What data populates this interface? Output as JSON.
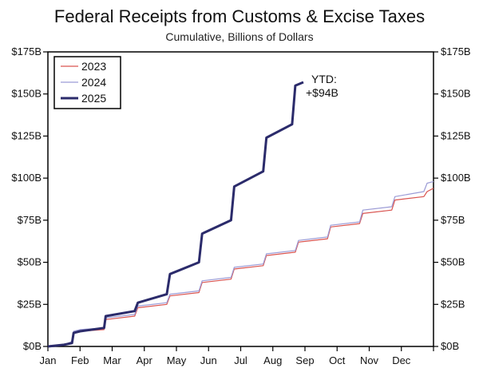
{
  "chart_data": {
    "type": "line",
    "title": "Federal Receipts from Customs & Excise Taxes",
    "subtitle": "Cumulative, Billions of Dollars",
    "xlabel": "",
    "ylabel": "",
    "x_tick_labels": [
      "Jan",
      "Feb",
      "Mar",
      "Apr",
      "May",
      "Jun",
      "Jul",
      "Aug",
      "Sep",
      "Oct",
      "Nov",
      "Dec"
    ],
    "x_range_months": [
      0,
      12
    ],
    "ylim": [
      0,
      175
    ],
    "y_ticks": [
      0,
      25,
      50,
      75,
      100,
      125,
      150,
      175
    ],
    "y_tick_labels": [
      "$0B",
      "$25B",
      "$50B",
      "$75B",
      "$100B",
      "$125B",
      "$150B",
      "$175B"
    ],
    "grid": false,
    "legend_position": "top-left",
    "annotation": {
      "line1": "YTD:",
      "line2": "+$94B",
      "month": 7.95,
      "value": 157
    },
    "series": [
      {
        "name": "2023",
        "color": "#d9534f",
        "points": [
          [
            0,
            0
          ],
          [
            0.5,
            1
          ],
          [
            0.75,
            2
          ],
          [
            0.8,
            8
          ],
          [
            1.0,
            9
          ],
          [
            1.75,
            10
          ],
          [
            1.8,
            16
          ],
          [
            2.7,
            18
          ],
          [
            2.8,
            23
          ],
          [
            3.7,
            25
          ],
          [
            3.8,
            30
          ],
          [
            4.7,
            32
          ],
          [
            4.8,
            38
          ],
          [
            5.7,
            40
          ],
          [
            5.8,
            46
          ],
          [
            6.7,
            48
          ],
          [
            6.8,
            54
          ],
          [
            7.7,
            56
          ],
          [
            7.8,
            62
          ],
          [
            8.7,
            64
          ],
          [
            8.8,
            71
          ],
          [
            9.7,
            73
          ],
          [
            9.8,
            79
          ],
          [
            10.7,
            81
          ],
          [
            10.8,
            87
          ],
          [
            11.7,
            89
          ],
          [
            11.8,
            92
          ],
          [
            12,
            94
          ]
        ]
      },
      {
        "name": "2024",
        "color": "#9b9bd6",
        "points": [
          [
            0,
            0
          ],
          [
            0.5,
            1
          ],
          [
            0.75,
            3
          ],
          [
            0.8,
            9
          ],
          [
            1.0,
            10
          ],
          [
            1.75,
            11
          ],
          [
            1.8,
            17
          ],
          [
            2.7,
            19
          ],
          [
            2.8,
            24
          ],
          [
            3.7,
            26
          ],
          [
            3.8,
            31
          ],
          [
            4.7,
            33
          ],
          [
            4.8,
            39
          ],
          [
            5.7,
            41
          ],
          [
            5.8,
            47
          ],
          [
            6.7,
            49
          ],
          [
            6.8,
            55
          ],
          [
            7.7,
            57
          ],
          [
            7.8,
            63
          ],
          [
            8.7,
            65
          ],
          [
            8.8,
            72
          ],
          [
            9.7,
            74
          ],
          [
            9.8,
            81
          ],
          [
            10.7,
            83
          ],
          [
            10.8,
            89
          ],
          [
            11.7,
            92
          ],
          [
            11.8,
            97
          ],
          [
            12,
            98
          ]
        ]
      },
      {
        "name": "2025",
        "color": "#2b2b6b",
        "points": [
          [
            0,
            0
          ],
          [
            0.5,
            1
          ],
          [
            0.75,
            2
          ],
          [
            0.8,
            8
          ],
          [
            1.0,
            9
          ],
          [
            1.75,
            11
          ],
          [
            1.8,
            18
          ],
          [
            2.7,
            21
          ],
          [
            2.8,
            26
          ],
          [
            3.7,
            31
          ],
          [
            3.8,
            43
          ],
          [
            4.7,
            50
          ],
          [
            4.8,
            67
          ],
          [
            5.7,
            75
          ],
          [
            5.8,
            95
          ],
          [
            6.7,
            104
          ],
          [
            6.8,
            124
          ],
          [
            7.6,
            132
          ],
          [
            7.7,
            155
          ],
          [
            7.95,
            157
          ]
        ]
      }
    ]
  }
}
